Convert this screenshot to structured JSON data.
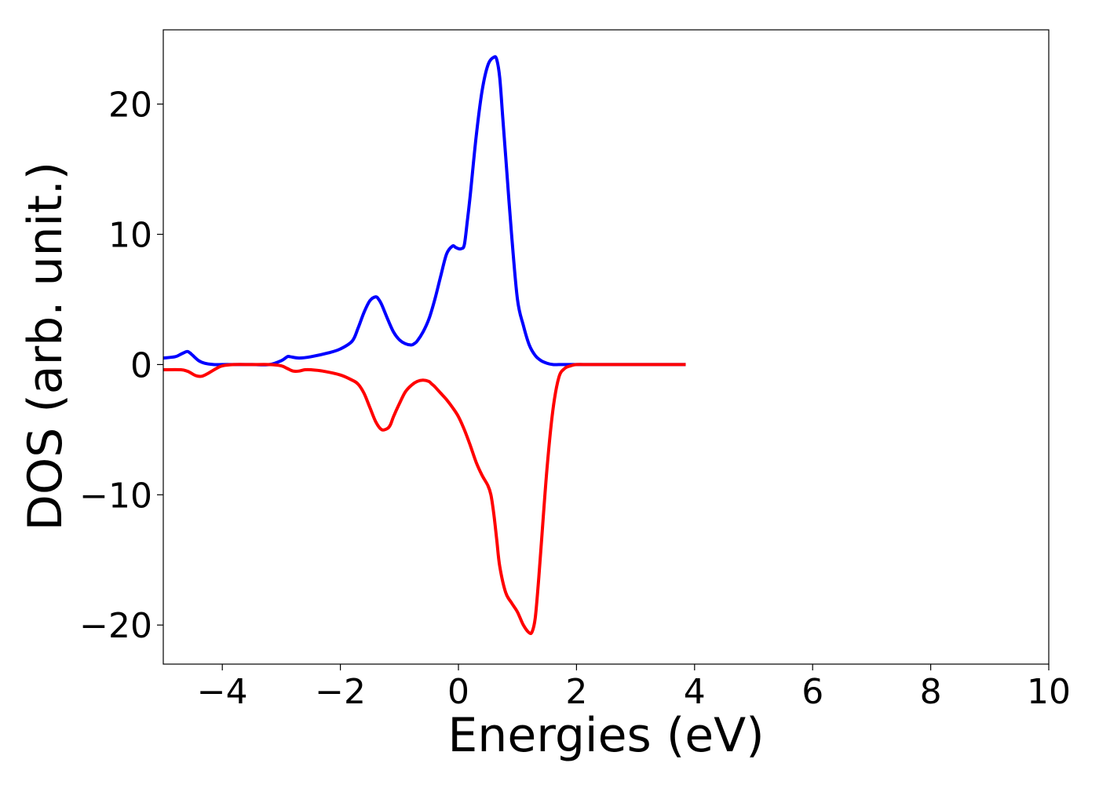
{
  "chart_data": {
    "type": "line",
    "title": "",
    "xlabel": "Energies (eV)",
    "ylabel": "DOS (arb. unit.)",
    "xlim": [
      -5,
      10
    ],
    "ylim": [
      -23,
      25.7
    ],
    "xticks": [
      -4,
      -2,
      0,
      2,
      4,
      6,
      8,
      10
    ],
    "xtick_labels": [
      "−4",
      "−2",
      "0",
      "2",
      "4",
      "6",
      "8",
      "10"
    ],
    "yticks": [
      -20,
      -10,
      0,
      10,
      20
    ],
    "ytick_labels": [
      "−20",
      "−10",
      "0",
      "10",
      "20"
    ],
    "grid": false,
    "legend": "none",
    "series": [
      {
        "color": "#0000ff",
        "x": [
          -5.0,
          -4.8,
          -4.7,
          -4.6,
          -4.55,
          -4.5,
          -4.4,
          -4.3,
          -4.15,
          -4.0,
          -3.8,
          -3.5,
          -3.2,
          -3.0,
          -2.9,
          -2.85,
          -2.7,
          -2.5,
          -2.2,
          -2.0,
          -1.8,
          -1.7,
          -1.6,
          -1.5,
          -1.4,
          -1.35,
          -1.3,
          -1.2,
          -1.1,
          -1.0,
          -0.9,
          -0.8,
          -0.75,
          -0.7,
          -0.6,
          -0.5,
          -0.4,
          -0.3,
          -0.2,
          -0.1,
          -0.05,
          0.0,
          0.05,
          0.1,
          0.15,
          0.2,
          0.3,
          0.4,
          0.5,
          0.6,
          0.65,
          0.7,
          0.75,
          0.8,
          0.9,
          1.0,
          1.1,
          1.2,
          1.3,
          1.4,
          1.5,
          1.6,
          1.7,
          1.8,
          1.9,
          2.0,
          2.2,
          2.5,
          3.0,
          3.5,
          3.85
        ],
        "y": [
          0.5,
          0.6,
          0.8,
          1.0,
          0.9,
          0.7,
          0.3,
          0.1,
          0.0,
          0.0,
          0.0,
          0.0,
          0.0,
          0.3,
          0.6,
          0.6,
          0.5,
          0.6,
          0.9,
          1.2,
          1.8,
          2.8,
          4.0,
          4.9,
          5.2,
          5.0,
          4.6,
          3.5,
          2.5,
          1.9,
          1.6,
          1.5,
          1.6,
          1.8,
          2.5,
          3.5,
          5.0,
          6.8,
          8.5,
          9.1,
          9.0,
          8.9,
          8.9,
          9.2,
          11.0,
          13.0,
          17.5,
          21.0,
          23.0,
          23.6,
          23.4,
          22.0,
          19.0,
          16.0,
          10.0,
          5.0,
          3.0,
          1.5,
          0.7,
          0.3,
          0.1,
          0.0,
          0.0,
          0.0,
          0.0,
          0.0,
          0.0,
          0.0,
          0.0,
          0.0,
          0.0
        ]
      },
      {
        "color": "#ff0000",
        "x": [
          -5.0,
          -4.7,
          -4.6,
          -4.55,
          -4.45,
          -4.35,
          -4.25,
          -4.1,
          -4.0,
          -3.8,
          -3.5,
          -3.2,
          -3.0,
          -2.9,
          -2.8,
          -2.7,
          -2.6,
          -2.5,
          -2.3,
          -2.0,
          -1.8,
          -1.7,
          -1.6,
          -1.5,
          -1.4,
          -1.3,
          -1.2,
          -1.15,
          -1.1,
          -1.0,
          -0.9,
          -0.8,
          -0.7,
          -0.6,
          -0.5,
          -0.45,
          -0.4,
          -0.3,
          -0.2,
          -0.1,
          0.0,
          0.1,
          0.2,
          0.3,
          0.4,
          0.5,
          0.55,
          0.6,
          0.65,
          0.7,
          0.8,
          0.9,
          1.0,
          1.1,
          1.2,
          1.25,
          1.3,
          1.35,
          1.4,
          1.5,
          1.6,
          1.7,
          1.8,
          1.9,
          2.0,
          2.2,
          2.5,
          3.0,
          3.5,
          3.85
        ],
        "y": [
          -0.4,
          -0.4,
          -0.5,
          -0.6,
          -0.85,
          -0.9,
          -0.7,
          -0.3,
          -0.1,
          0.0,
          0.0,
          0.0,
          -0.1,
          -0.3,
          -0.5,
          -0.5,
          -0.4,
          -0.4,
          -0.5,
          -0.8,
          -1.2,
          -1.5,
          -2.2,
          -3.3,
          -4.4,
          -5.0,
          -4.9,
          -4.6,
          -4.0,
          -3.0,
          -2.1,
          -1.6,
          -1.3,
          -1.2,
          -1.3,
          -1.5,
          -1.7,
          -2.2,
          -2.7,
          -3.3,
          -4.0,
          -5.0,
          -6.2,
          -7.5,
          -8.5,
          -9.3,
          -10.0,
          -11.5,
          -13.5,
          -15.5,
          -17.5,
          -18.3,
          -19.0,
          -20.0,
          -20.6,
          -20.5,
          -19.5,
          -17.0,
          -14.0,
          -8.0,
          -3.5,
          -1.0,
          -0.3,
          -0.1,
          0.0,
          0.0,
          0.0,
          0.0,
          0.0,
          0.0
        ]
      }
    ]
  }
}
